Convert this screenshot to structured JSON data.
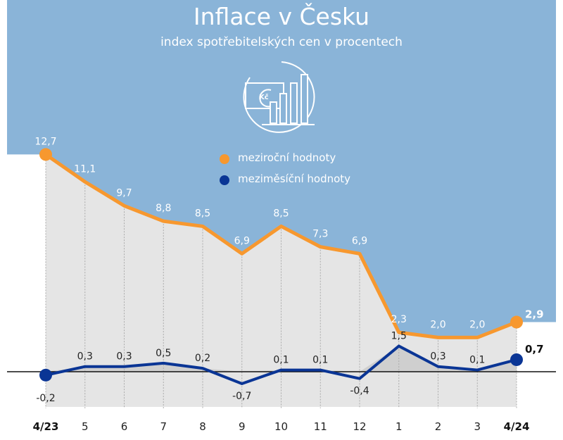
{
  "chart_data": {
    "type": "line",
    "title": "Inflace v Česku",
    "subtitle": "index spotřebitelských cen v procentech",
    "categories": [
      "4/23",
      "5",
      "6",
      "7",
      "8",
      "9",
      "10",
      "11",
      "12",
      "1",
      "2",
      "3",
      "4/24"
    ],
    "series": [
      {
        "name": "meziroční hodnoty",
        "color": "#f7982f",
        "values": [
          12.7,
          11.1,
          9.7,
          8.8,
          8.5,
          6.9,
          8.5,
          7.3,
          6.9,
          2.3,
          2.0,
          2.0,
          2.9
        ],
        "labels": [
          "12,7",
          "11,1",
          "9,7",
          "8,8",
          "8,5",
          "6,9",
          "8,5",
          "7,3",
          "6,9",
          "2,3",
          "2,0",
          "2,0",
          "2,9"
        ]
      },
      {
        "name": "meziměsíční hodnoty",
        "color": "#0a3595",
        "values": [
          -0.2,
          0.3,
          0.3,
          0.5,
          0.2,
          -0.7,
          0.1,
          0.1,
          -0.4,
          1.5,
          0.3,
          0.1,
          0.7
        ],
        "labels": [
          "-0,2",
          "0,3",
          "0,3",
          "0,5",
          "0,2",
          "-0,7",
          "0,1",
          "0,1",
          "-0,4",
          "1,5",
          "0,3",
          "0,1",
          "0,7"
        ]
      }
    ],
    "grid": false,
    "legend": "top-center",
    "background_color": "#8ab4d8"
  },
  "icon": "koruna-bar-chart-icon",
  "icon_text": "Kč"
}
